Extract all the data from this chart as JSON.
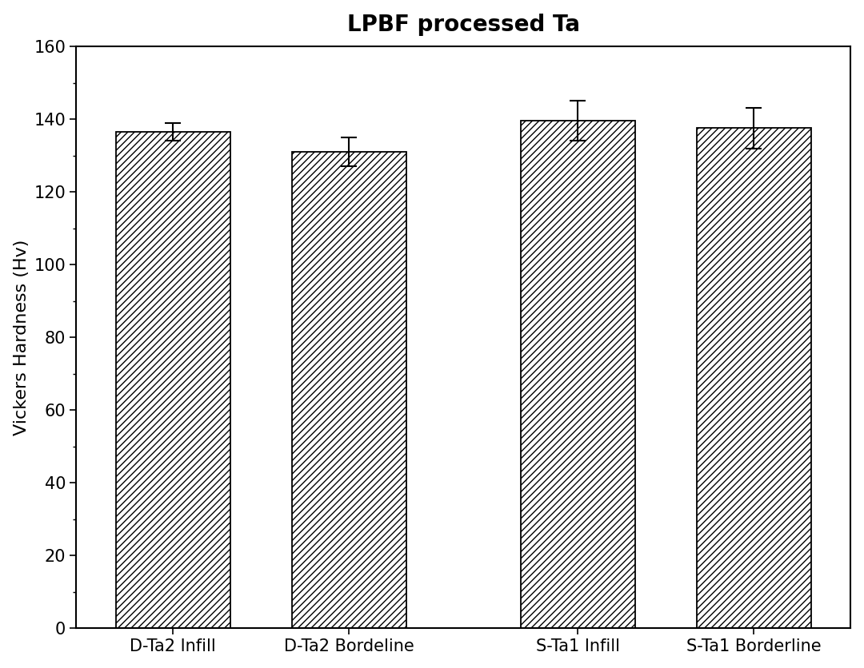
{
  "title": "LPBF processed Ta",
  "ylabel": "Vickers Hardness (Hv)",
  "categories": [
    "D-Ta2 Infill",
    "D-Ta2 Bordeline",
    "S-Ta1 Infill",
    "S-Ta1 Borderline"
  ],
  "values": [
    136.5,
    131.0,
    139.5,
    137.5
  ],
  "errors": [
    2.5,
    4.0,
    5.5,
    5.5
  ],
  "ylim": [
    0,
    160
  ],
  "yticks": [
    0,
    20,
    40,
    60,
    80,
    100,
    120,
    140,
    160
  ],
  "bar_color": "#ffffff",
  "bar_edgecolor": "#000000",
  "hatch_pattern": "////",
  "title_fontsize": 20,
  "label_fontsize": 16,
  "tick_fontsize": 15,
  "bar_width": 0.65,
  "background_color": "#ffffff",
  "x_positions": [
    0,
    1,
    2.3,
    3.3
  ],
  "xlim_left": -0.55,
  "xlim_right": 3.85
}
